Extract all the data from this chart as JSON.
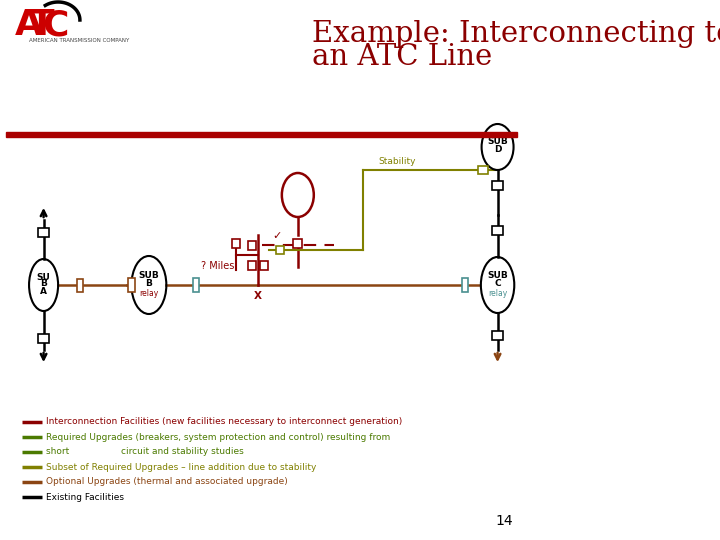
{
  "title_line1": "Example: Interconnecting to",
  "title_line2": "an ATC Line",
  "title_color": "#8B0000",
  "bg_color": "#FFFFFF",
  "page_number": "14",
  "legend_items": [
    {
      "color": "#8B0000",
      "text": "Interconnection Facilities (new facilities necessary to interconnect generation)"
    },
    {
      "color": "#4B7A00",
      "text": "Required Upgrades (breakers, system protection and control) resulting from"
    },
    {
      "color": "#4B7A00",
      "text": "short                  circuit and stability studies"
    },
    {
      "color": "#808000",
      "text": "Subset of Required Upgrades – line addition due to stability"
    },
    {
      "color": "#8B4513",
      "text": "Optional Upgrades (thermal and associated upgrade)"
    },
    {
      "color": "#000000",
      "text": "Existing Facilities"
    }
  ]
}
